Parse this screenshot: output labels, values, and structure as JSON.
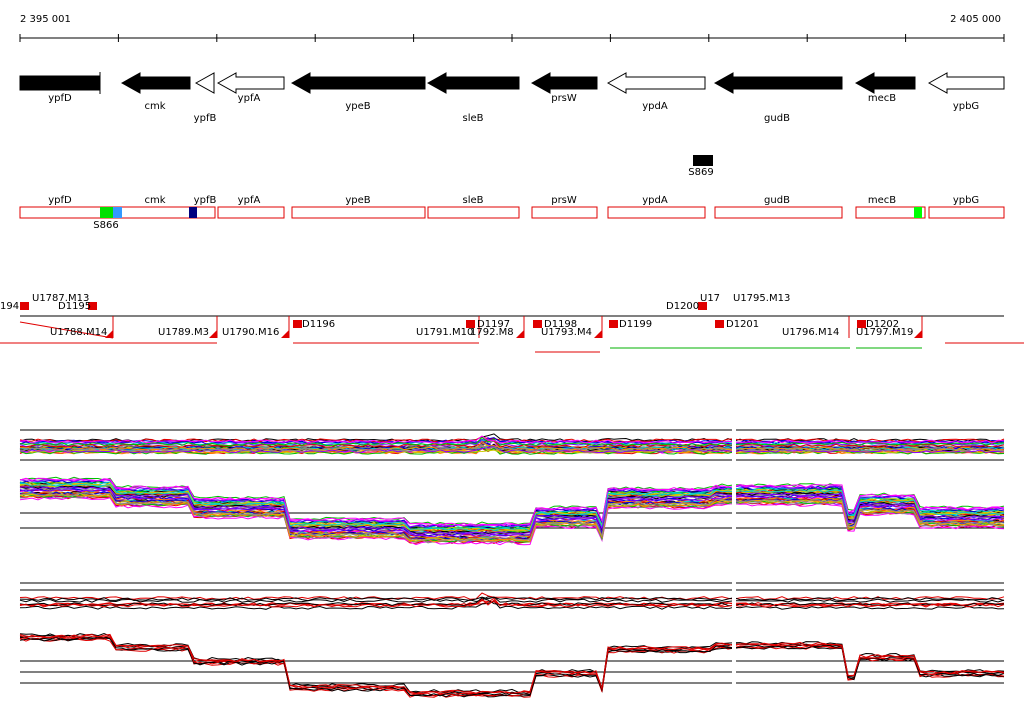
{
  "ruler": {
    "start": "2 395 001",
    "end": "2 405 000"
  },
  "genes": [
    "ypfD",
    "cmk",
    "ypfB",
    "ypfA",
    "ypeB",
    "sleB",
    "prsW",
    "ypdA",
    "gudB",
    "mecB",
    "ypbG"
  ],
  "sites": [
    "S869",
    "S866"
  ],
  "annotations": [
    "ypfD",
    "cmk",
    "ypfB",
    "ypfA",
    "ypeB",
    "sleB",
    "prsW",
    "ypdA",
    "gudB",
    "mecB",
    "ypbG"
  ],
  "units": [
    "194",
    "U1787.M13",
    "D1195",
    "U1788.M14",
    "U1789.M3",
    "U1790.M16",
    "D1196",
    "U1791.M10",
    "1792.M8",
    "D1197",
    "D1198",
    "U1793.M4",
    "D1199",
    "D1200",
    "U17",
    "U1795.M13",
    "D1201",
    "U1796.M14",
    "D1202",
    "U1797.M19"
  ]
}
